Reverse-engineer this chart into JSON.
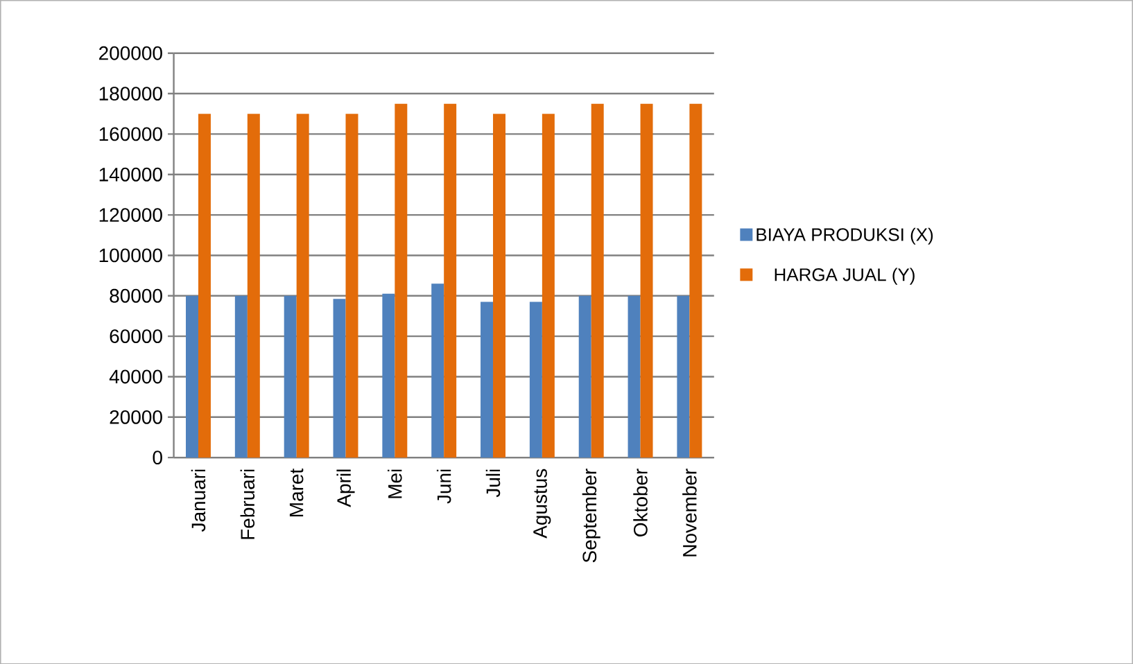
{
  "chart_data": {
    "type": "bar",
    "categories": [
      "Januari",
      "Februari",
      "Maret",
      "April",
      "Mei",
      "Juni",
      "Juli",
      "Agustus",
      "September",
      "Oktober",
      "November"
    ],
    "series": [
      {
        "name": "BIAYA PRODUKSI (X)",
        "color": "#4f81bd",
        "values": [
          80000,
          80000,
          80000,
          78500,
          81000,
          86000,
          77000,
          77000,
          80000,
          80000,
          80000
        ]
      },
      {
        "name": "HARGA JUAL (Y)",
        "color": "#e36c0a",
        "values": [
          170000,
          170000,
          170000,
          170000,
          175000,
          175000,
          170000,
          170000,
          175000,
          175000,
          175000
        ]
      }
    ],
    "ylim": [
      0,
      200000
    ],
    "yticks": [
      0,
      20000,
      40000,
      60000,
      80000,
      100000,
      120000,
      140000,
      160000,
      180000,
      200000
    ],
    "grid": "y",
    "legend": "right"
  }
}
